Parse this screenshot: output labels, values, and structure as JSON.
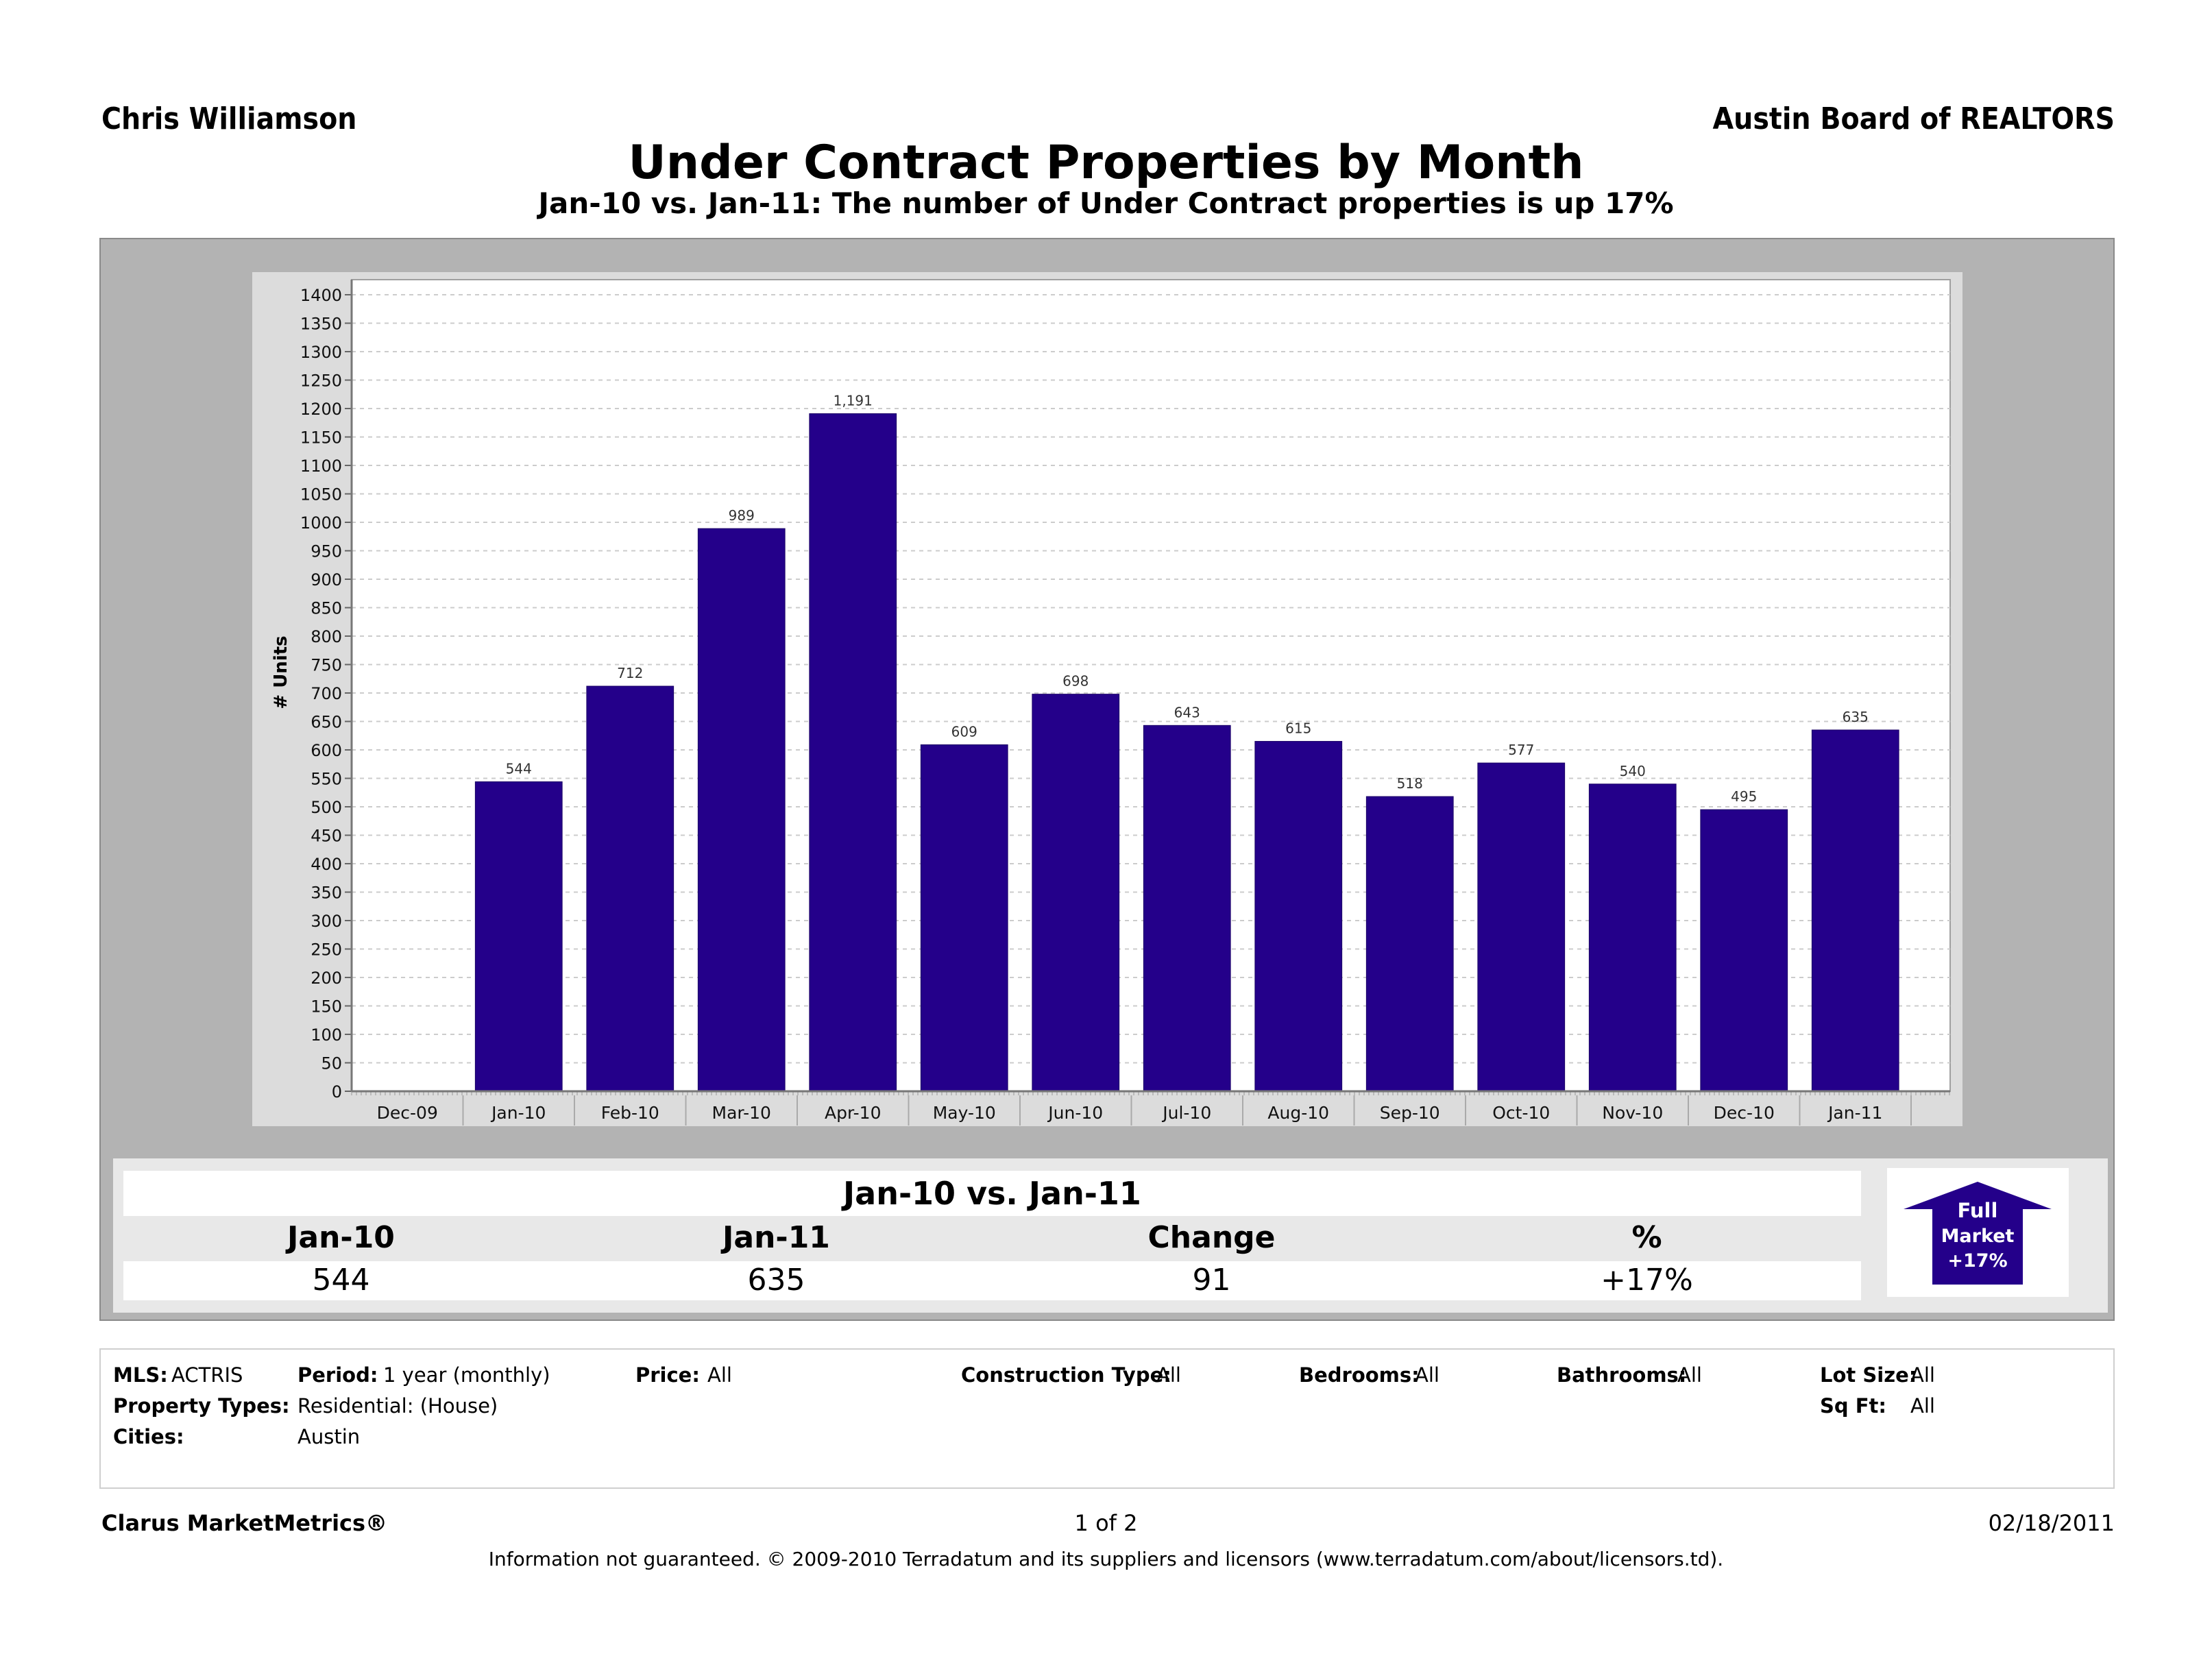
{
  "header": {
    "agent_name": "Chris Williamson",
    "organization": "Austin Board of REALTORS",
    "title": "Under Contract Properties by Month",
    "subtitle": "Jan-10 vs. Jan-11: The number of Under Contract properties is up 17%"
  },
  "colors": {
    "bar": "#24008a",
    "frame": "#b3b3b3",
    "panel": "#dcdcdc",
    "plot_bg": "#ffffff",
    "grid": "#cccccc"
  },
  "chart_data": {
    "type": "bar",
    "title": "Under Contract Properties by Month",
    "xlabel": "",
    "ylabel": "# Units",
    "ylim": [
      0,
      1400
    ],
    "ytick_step": 50,
    "grid": true,
    "legend": "none",
    "categories": [
      "Dec-09",
      "Jan-10",
      "Feb-10",
      "Mar-10",
      "Apr-10",
      "May-10",
      "Jun-10",
      "Jul-10",
      "Aug-10",
      "Sep-10",
      "Oct-10",
      "Nov-10",
      "Dec-10",
      "Jan-11"
    ],
    "values": [
      null,
      544,
      712,
      989,
      1191,
      609,
      698,
      643,
      615,
      518,
      577,
      540,
      495,
      635
    ],
    "data_labels": [
      "",
      "544",
      "712",
      "989",
      "1,191",
      "609",
      "698",
      "643",
      "615",
      "518",
      "577",
      "540",
      "495",
      "635"
    ]
  },
  "summary": {
    "title": "Jan-10 vs. Jan-11",
    "headers": [
      "Jan-10",
      "Jan-11",
      "Change",
      "%"
    ],
    "values": [
      "544",
      "635",
      "91",
      "+17%"
    ],
    "badge": {
      "line1": "Full",
      "line2": "Market",
      "line3": "+17%",
      "direction": "up"
    }
  },
  "filters": {
    "mls": {
      "label": "MLS:",
      "value": "ACTRIS"
    },
    "period": {
      "label": "Period:",
      "value": "1 year (monthly)"
    },
    "price": {
      "label": "Price:",
      "value": "All"
    },
    "construction_type": {
      "label": "Construction Type:",
      "value": "All"
    },
    "bedrooms": {
      "label": "Bedrooms:",
      "value": "All"
    },
    "bathrooms": {
      "label": "Bathrooms:",
      "value": "All"
    },
    "lot_size": {
      "label": "Lot Size:",
      "value": "All"
    },
    "property_types": {
      "label": "Property Types:",
      "value": "Residential: (House)"
    },
    "sq_ft": {
      "label": "Sq Ft:",
      "value": "All"
    },
    "cities": {
      "label": "Cities:",
      "value": "Austin"
    }
  },
  "footer": {
    "brand": "Clarus MarketMetrics®",
    "page": "1 of 2",
    "date": "02/18/2011",
    "disclaimer": "Information not guaranteed.  © 2009-2010 Terradatum and its suppliers and licensors (www.terradatum.com/about/licensors.td)."
  }
}
